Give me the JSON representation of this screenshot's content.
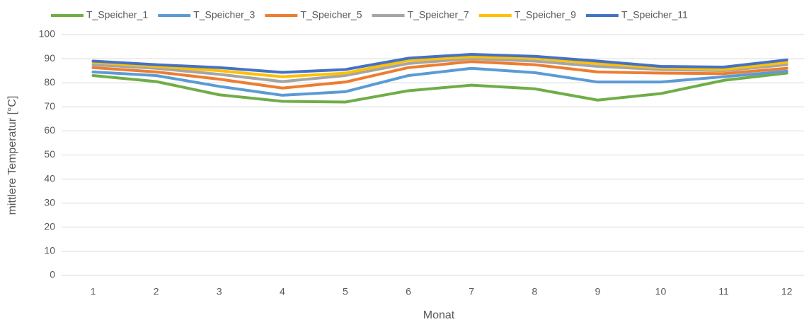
{
  "chart_data": {
    "type": "line",
    "x_label": "Monat",
    "y_label": "mittlere Temperatur [°C]",
    "categories": [
      "1",
      "2",
      "3",
      "4",
      "5",
      "6",
      "7",
      "8",
      "9",
      "10",
      "11",
      "12"
    ],
    "series": [
      {
        "name": "T_Speicher_1",
        "color": "#70ad47",
        "values": [
          83,
          80.5,
          75,
          72.3,
          72,
          76.7,
          79,
          77.5,
          72.8,
          75.5,
          81,
          84
        ]
      },
      {
        "name": "T_Speicher_3",
        "color": "#5b9bd5",
        "values": [
          84.5,
          83,
          78.5,
          74.8,
          76.3,
          83,
          86,
          84.2,
          80.3,
          80.3,
          82.5,
          84.8
        ]
      },
      {
        "name": "T_Speicher_5",
        "color": "#ed7d31",
        "values": [
          86.3,
          84.5,
          81.5,
          77.8,
          80.3,
          86.3,
          88.8,
          87.5,
          84.5,
          84,
          83.8,
          86
        ]
      },
      {
        "name": "T_Speicher_7",
        "color": "#a5a5a5",
        "values": [
          87.5,
          86,
          83.5,
          80.5,
          83,
          88,
          90,
          89,
          86.8,
          85.5,
          85,
          87.5
        ]
      },
      {
        "name": "T_Speicher_9",
        "color": "#ffc000",
        "values": [
          88.5,
          86.8,
          85,
          82.5,
          84,
          89.3,
          90.8,
          90.2,
          88,
          86.2,
          85.5,
          88.5
        ]
      },
      {
        "name": "T_Speicher_11",
        "color": "#4472c4",
        "values": [
          89,
          87.5,
          86.3,
          84.3,
          85.5,
          90.2,
          91.8,
          91,
          89,
          86.8,
          86.5,
          89.5
        ]
      }
    ],
    "ylim": [
      0,
      100
    ],
    "yticks": [
      0,
      10,
      20,
      30,
      40,
      50,
      60,
      70,
      80,
      90,
      100
    ],
    "grid": true,
    "legend": "top"
  }
}
